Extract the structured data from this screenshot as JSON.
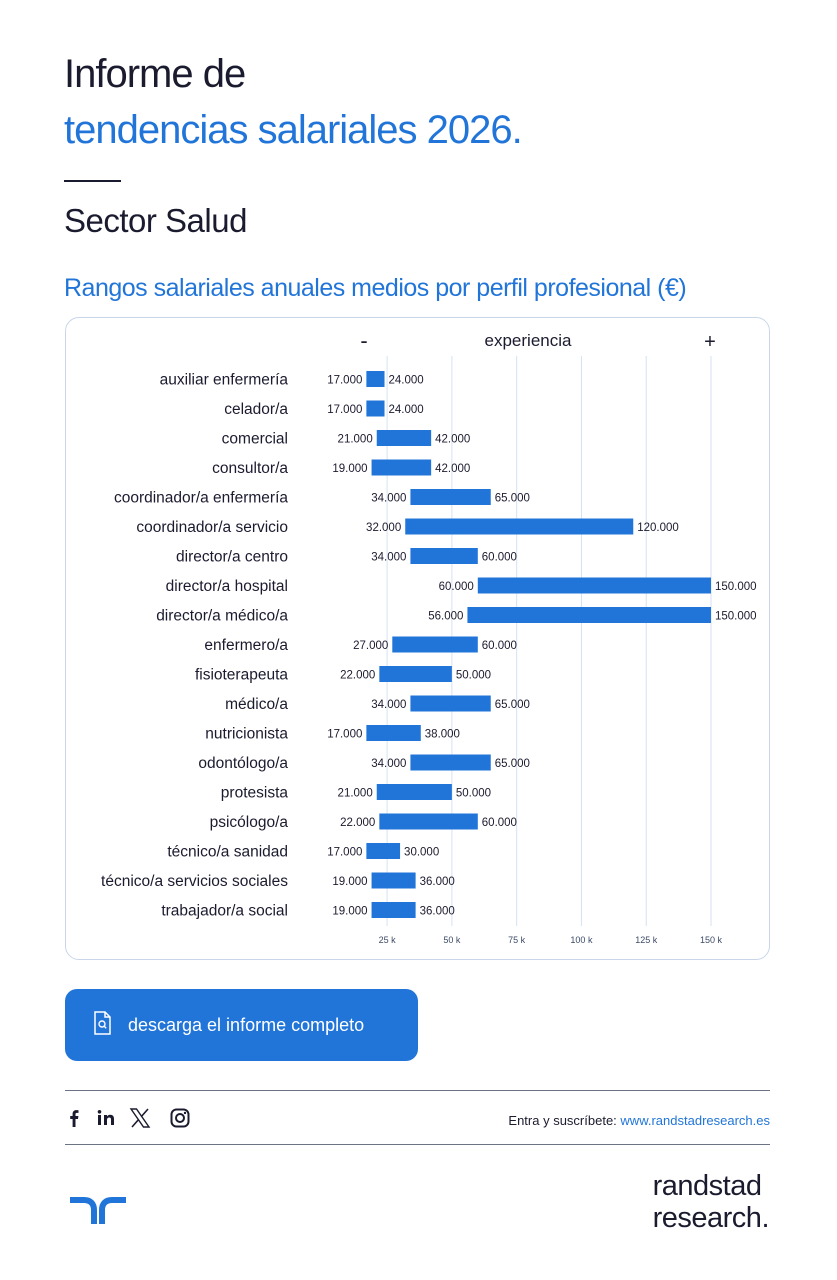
{
  "header": {
    "title_line1": "Informe de",
    "title_line2": "tendencias salariales 2026.",
    "sector": "Sector Salud",
    "subtitle": "Rangos salariales anuales medios por perfil profesional (€)"
  },
  "chart_data": {
    "type": "bar",
    "orientation": "horizontal-range",
    "experience_labels": {
      "low": "-",
      "title": "experiencia",
      "high": "+"
    },
    "categories": [
      "auxiliar enfermería",
      "celador/a",
      "comercial",
      "consultor/a",
      "coordinador/a enfermería",
      "coordinador/a servicio",
      "director/a centro",
      "director/a hospital",
      "director/a médico/a",
      "enfermero/a",
      "fisioterapeuta",
      "médico/a",
      "nutricionista",
      "odontólogo/a",
      "protesista",
      "psicólogo/a",
      "técnico/a sanidad",
      "técnico/a servicios sociales",
      "trabajador/a social"
    ],
    "series": [
      {
        "values_min": [
          17000,
          17000,
          21000,
          19000,
          34000,
          32000,
          34000,
          60000,
          56000,
          27000,
          22000,
          34000,
          17000,
          34000,
          21000,
          22000,
          17000,
          19000,
          19000
        ],
        "values_max": [
          24000,
          24000,
          42000,
          42000,
          65000,
          120000,
          60000,
          150000,
          150000,
          60000,
          50000,
          65000,
          38000,
          65000,
          50000,
          60000,
          30000,
          36000,
          36000
        ]
      }
    ],
    "min_labels": [
      "17.000",
      "17.000",
      "21.000",
      "19.000",
      "34.000",
      "32.000",
      "34.000",
      "60.000",
      "56.000",
      "27.000",
      "22.000",
      "34.000",
      "17.000",
      "34.000",
      "21.000",
      "22.000",
      "17.000",
      "19.000",
      "19.000"
    ],
    "max_labels": [
      "24.000",
      "24.000",
      "42.000",
      "42.000",
      "65.000",
      "120.000",
      "60.000",
      "150.000",
      "150.000",
      "60.000",
      "50.000",
      "65.000",
      "38.000",
      "65.000",
      "50.000",
      "60.000",
      "30.000",
      "36.000",
      "36.000"
    ],
    "x_ticks": [
      25000,
      50000,
      75000,
      100000,
      125000,
      150000
    ],
    "x_tick_labels": [
      "25 k",
      "50 k",
      "75 k",
      "100 k",
      "125 k",
      "150 k"
    ],
    "xlim": [
      8750,
      150000
    ],
    "grid": true,
    "bar_color": "#2175d9",
    "grid_color": "#d5e2f3"
  },
  "cta": {
    "label": "descarga el informe completo",
    "icon": "document-search-icon"
  },
  "footer": {
    "social_icons": [
      "facebook-icon",
      "linkedin-icon",
      "x-icon",
      "instagram-icon"
    ],
    "subscribe_text": "Entra y suscríbete:",
    "subscribe_link": "www.randstadresearch.es",
    "brand_line1": "randstad",
    "brand_line2": "research."
  },
  "colors": {
    "accent": "#2175d9",
    "text": "#1b1b2f"
  }
}
